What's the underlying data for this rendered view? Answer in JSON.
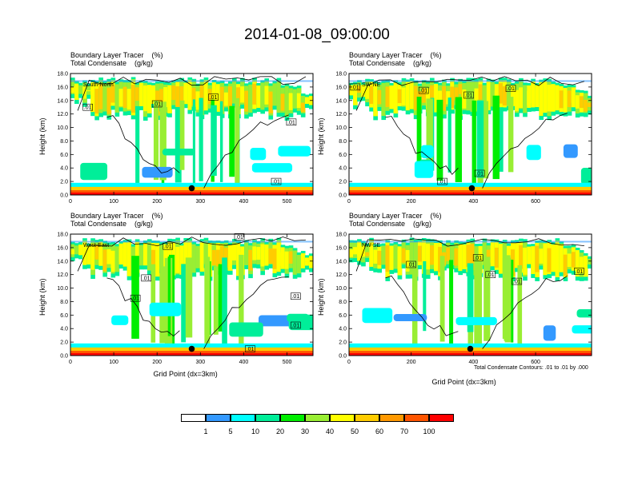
{
  "title": "2014-01-08_09:00:00",
  "panel_header_line1": "Boundary Layer Tracer    (%)",
  "panel_header_line2": "Total Condensate    (g/kg)",
  "ylabel": "Height (km)",
  "xlabel": "Grid Point (dx=3km)",
  "footnote": "Total Condensate Contours: .01 to .01 by .000",
  "contour_label": ".01",
  "colorbar": {
    "colors": [
      "#ffffff",
      "#3399ff",
      "#00ffff",
      "#00ee99",
      "#00ee00",
      "#99ee33",
      "#ffff00",
      "#ffcc00",
      "#ff9900",
      "#ff5500",
      "#ff0000"
    ],
    "labels": [
      "1",
      "5",
      "10",
      "20",
      "30",
      "40",
      "50",
      "60",
      "70",
      "100"
    ]
  },
  "chart_data": [
    {
      "type": "heatmap",
      "name": "South-North",
      "xlim": [
        0,
        560
      ],
      "ylim": [
        0,
        18
      ],
      "xticks": [
        0,
        100,
        200,
        300,
        400,
        500
      ],
      "yticks": [
        0.0,
        2.0,
        4.0,
        6.0,
        8.0,
        10.0,
        12.0,
        14.0,
        16.0,
        18.0
      ],
      "yticklabels": [
        "0.0",
        "2.0",
        "4.0",
        "6.0",
        "8.0",
        "10.0",
        "12.0",
        "14.0",
        "16.0",
        "18.0"
      ],
      "marker": [
        280,
        1.0
      ],
      "contour_labels": [
        [
          40,
          13.0
        ],
        [
          200,
          13.5
        ],
        [
          330,
          14.5
        ],
        [
          510,
          10.8
        ],
        [
          475,
          2.0
        ]
      ]
    },
    {
      "type": "heatmap",
      "name": "SW-NE",
      "xlim": [
        0,
        780
      ],
      "ylim": [
        0,
        18
      ],
      "xticks": [
        0,
        200,
        400,
        600
      ],
      "yticks": [
        0.0,
        2.0,
        4.0,
        6.0,
        8.0,
        10.0,
        12.0,
        14.0,
        16.0,
        18.0
      ],
      "yticklabels": [
        "0.0",
        "2.0",
        "4.0",
        "6.0",
        "8.0",
        "10.0",
        "12.0",
        "14.0",
        "16.0",
        "18.0"
      ],
      "marker": [
        395,
        1.0
      ],
      "contour_labels": [
        [
          20,
          16.0
        ],
        [
          240,
          15.5
        ],
        [
          385,
          14.8
        ],
        [
          520,
          15.8
        ],
        [
          300,
          2.0
        ],
        [
          420,
          3.2
        ]
      ]
    },
    {
      "type": "heatmap",
      "name": "West-East",
      "xlim": [
        0,
        560
      ],
      "ylim": [
        0,
        18
      ],
      "xticks": [
        0,
        100,
        200,
        300,
        400,
        500
      ],
      "yticks": [
        0.0,
        2.0,
        4.0,
        6.0,
        8.0,
        10.0,
        12.0,
        14.0,
        16.0,
        18.0
      ],
      "yticklabels": [
        "0.0",
        "2.0",
        "4.0",
        "6.0",
        "8.0",
        "10.0",
        "12.0",
        "14.0",
        "16.0",
        "18.0"
      ],
      "marker": [
        280,
        1.0
      ],
      "contour_labels": [
        [
          225,
          16.2
        ],
        [
          390,
          17.6
        ],
        [
          175,
          11.5
        ],
        [
          150,
          8.5
        ],
        [
          520,
          8.8
        ],
        [
          520,
          4.5
        ],
        [
          415,
          1.0
        ]
      ]
    },
    {
      "type": "heatmap",
      "name": "NW-SE",
      "xlim": [
        0,
        780
      ],
      "ylim": [
        0,
        18
      ],
      "xticks": [
        0,
        200,
        400,
        600
      ],
      "yticks": [
        0.0,
        2.0,
        4.0,
        6.0,
        8.0,
        10.0,
        12.0,
        14.0,
        16.0,
        18.0
      ],
      "yticklabels": [
        "0.0",
        "2.0",
        "4.0",
        "6.0",
        "8.0",
        "10.0",
        "12.0",
        "14.0",
        "16.0",
        "18.0"
      ],
      "marker": [
        390,
        1.0
      ],
      "contour_labels": [
        [
          200,
          13.5
        ],
        [
          415,
          14.5
        ],
        [
          455,
          12.0
        ],
        [
          540,
          11.0
        ],
        [
          740,
          12.5
        ]
      ]
    }
  ]
}
